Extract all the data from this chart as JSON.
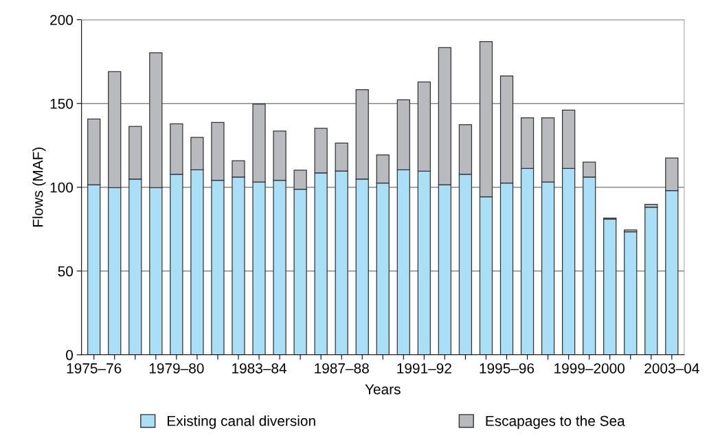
{
  "chart_data": {
    "type": "bar",
    "stacked": true,
    "xlabel": "Years",
    "ylabel": "Flows (MAF)",
    "categories": [
      "1975–76",
      null,
      null,
      null,
      "1979–80",
      null,
      null,
      null,
      "1983–84",
      null,
      null,
      null,
      "1987–88",
      null,
      null,
      null,
      "1991–92",
      null,
      null,
      null,
      "1995–96",
      null,
      null,
      null,
      "1999–2000",
      null,
      null,
      null,
      "2003–04"
    ],
    "series": [
      {
        "name": "Existing canal diversion",
        "color": "#a9e0f8",
        "values": [
          101.5,
          99.7,
          104.9,
          99.7,
          107.7,
          110.4,
          104.1,
          106.1,
          103.1,
          104.1,
          98.8,
          108.6,
          109.7,
          104.9,
          102.5,
          110.4,
          109.6,
          101.5,
          107.7,
          94.3,
          102.5,
          111.2,
          103.1,
          111.2,
          106.1,
          81,
          73.4,
          88.1,
          98
        ]
      },
      {
        "name": "Escapages to the Sea",
        "color": "#b9babe",
        "values": [
          39.2,
          69.3,
          31.4,
          80.6,
          30.1,
          19.4,
          34.6,
          9.7,
          46.5,
          29.4,
          11.4,
          26.6,
          16.7,
          53.3,
          16.8,
          41.8,
          53.2,
          81.8,
          29.6,
          92.6,
          63.9,
          30.2,
          38.3,
          34.8,
          8.9,
          0.6,
          1.1,
          1.7,
          19.5
        ]
      }
    ],
    "ylim": [
      0,
      200
    ],
    "yticks": [
      0,
      50,
      100,
      150,
      200
    ],
    "grid": "y",
    "legend": "bottom"
  }
}
